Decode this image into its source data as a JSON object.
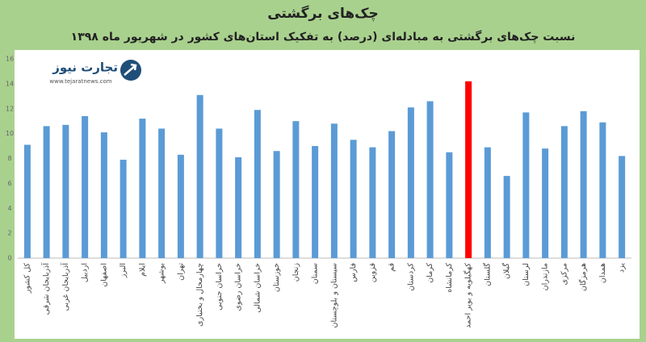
{
  "chart_data": {
    "type": "bar",
    "title": "چک‌های برگشتی",
    "subtitle": "نسبت چک‌های برگشتی به مبادله‌ای (درصد) به تفکیک استان‌های کشور در شهریور ماه ۱۳۹۸",
    "logo_text": "تجارت نیوز",
    "logo_url": "www.tejaratnews.com",
    "categories": [
      "کل کشور",
      "آذربایجان شرقی",
      "آذربایجان غربی",
      "اردبیل",
      "اصفهان",
      "البرز",
      "ایلام",
      "بوشهر",
      "تهران",
      "چهارمحال و بختیاری",
      "خراسان جنوبی",
      "خراسان رضوی",
      "خراسان شمالی",
      "خوزستان",
      "زنجان",
      "سمنان",
      "سیستان و بلوچستان",
      "فارس",
      "قزوین",
      "قم",
      "کردستان",
      "کرمان",
      "کرمانشاه",
      "کهگیلویه و بویر احمد",
      "گلستان",
      "گیلان",
      "لرستان",
      "مازندران",
      "مرکزی",
      "هرمزگان",
      "همدان",
      "یزد"
    ],
    "values": [
      9.1,
      10.6,
      10.7,
      11.4,
      10.1,
      7.9,
      11.2,
      10.4,
      8.3,
      13.1,
      10.4,
      8.1,
      11.9,
      8.6,
      11.0,
      9.0,
      10.8,
      9.5,
      8.9,
      10.2,
      12.1,
      12.6,
      8.5,
      14.2,
      8.9,
      6.6,
      11.7,
      8.8,
      10.6,
      11.8,
      10.9,
      8.2
    ],
    "colors": [
      "#5b9bd5",
      "#5b9bd5",
      "#5b9bd5",
      "#5b9bd5",
      "#5b9bd5",
      "#5b9bd5",
      "#5b9bd5",
      "#5b9bd5",
      "#5b9bd5",
      "#5b9bd5",
      "#5b9bd5",
      "#5b9bd5",
      "#5b9bd5",
      "#5b9bd5",
      "#5b9bd5",
      "#5b9bd5",
      "#5b9bd5",
      "#5b9bd5",
      "#5b9bd5",
      "#5b9bd5",
      "#5b9bd5",
      "#5b9bd5",
      "#5b9bd5",
      "#ff0000",
      "#5b9bd5",
      "#5b9bd5",
      "#5b9bd5",
      "#5b9bd5",
      "#5b9bd5",
      "#5b9bd5",
      "#5b9bd5",
      "#5b9bd5"
    ],
    "ylim": [
      0,
      16
    ],
    "yticks": [
      0,
      2,
      4,
      6,
      8,
      10,
      12,
      14,
      16
    ],
    "grid": false
  }
}
